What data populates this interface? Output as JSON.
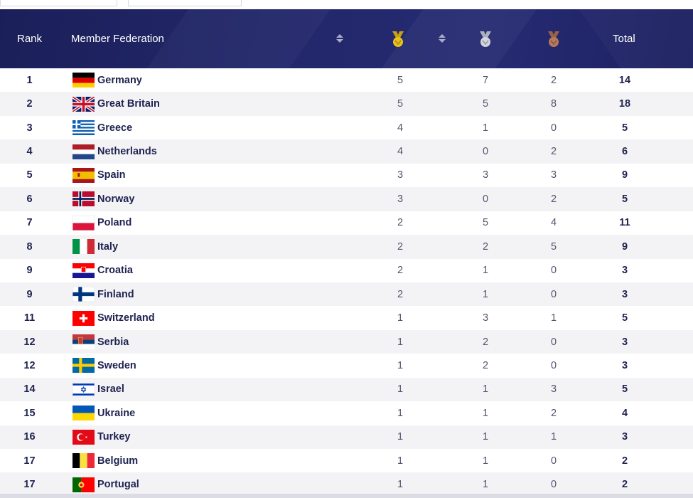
{
  "header": {
    "rank_label": "Rank",
    "federation_label": "Member Federation",
    "total_label": "Total",
    "medal_colors": {
      "gold": "#e8c21a",
      "silver": "#c9cad3",
      "bronze": "#b7795a"
    },
    "header_bg": "#1f235f"
  },
  "rows": [
    {
      "rank": "1",
      "name": "Germany",
      "flag": "de",
      "gold": "5",
      "silver": "7",
      "bronze": "2",
      "total": "14"
    },
    {
      "rank": "2",
      "name": "Great Britain",
      "flag": "gb",
      "gold": "5",
      "silver": "5",
      "bronze": "8",
      "total": "18"
    },
    {
      "rank": "3",
      "name": "Greece",
      "flag": "gr",
      "gold": "4",
      "silver": "1",
      "bronze": "0",
      "total": "5"
    },
    {
      "rank": "4",
      "name": "Netherlands",
      "flag": "nl",
      "gold": "4",
      "silver": "0",
      "bronze": "2",
      "total": "6"
    },
    {
      "rank": "5",
      "name": "Spain",
      "flag": "es",
      "gold": "3",
      "silver": "3",
      "bronze": "3",
      "total": "9"
    },
    {
      "rank": "6",
      "name": "Norway",
      "flag": "no",
      "gold": "3",
      "silver": "0",
      "bronze": "2",
      "total": "5"
    },
    {
      "rank": "7",
      "name": "Poland",
      "flag": "pl",
      "gold": "2",
      "silver": "5",
      "bronze": "4",
      "total": "11"
    },
    {
      "rank": "8",
      "name": "Italy",
      "flag": "it",
      "gold": "2",
      "silver": "2",
      "bronze": "5",
      "total": "9"
    },
    {
      "rank": "9",
      "name": "Croatia",
      "flag": "hr",
      "gold": "2",
      "silver": "1",
      "bronze": "0",
      "total": "3"
    },
    {
      "rank": "9",
      "name": "Finland",
      "flag": "fi",
      "gold": "2",
      "silver": "1",
      "bronze": "0",
      "total": "3"
    },
    {
      "rank": "11",
      "name": "Switzerland",
      "flag": "ch",
      "gold": "1",
      "silver": "3",
      "bronze": "1",
      "total": "5"
    },
    {
      "rank": "12",
      "name": "Serbia",
      "flag": "rs",
      "gold": "1",
      "silver": "2",
      "bronze": "0",
      "total": "3"
    },
    {
      "rank": "12",
      "name": "Sweden",
      "flag": "se",
      "gold": "1",
      "silver": "2",
      "bronze": "0",
      "total": "3"
    },
    {
      "rank": "14",
      "name": "Israel",
      "flag": "il",
      "gold": "1",
      "silver": "1",
      "bronze": "3",
      "total": "5"
    },
    {
      "rank": "15",
      "name": "Ukraine",
      "flag": "ua",
      "gold": "1",
      "silver": "1",
      "bronze": "2",
      "total": "4"
    },
    {
      "rank": "16",
      "name": "Turkey",
      "flag": "tr",
      "gold": "1",
      "silver": "1",
      "bronze": "1",
      "total": "3"
    },
    {
      "rank": "17",
      "name": "Belgium",
      "flag": "be",
      "gold": "1",
      "silver": "1",
      "bronze": "0",
      "total": "2"
    },
    {
      "rank": "17",
      "name": "Portugal",
      "flag": "pt",
      "gold": "1",
      "silver": "1",
      "bronze": "0",
      "total": "2"
    }
  ]
}
